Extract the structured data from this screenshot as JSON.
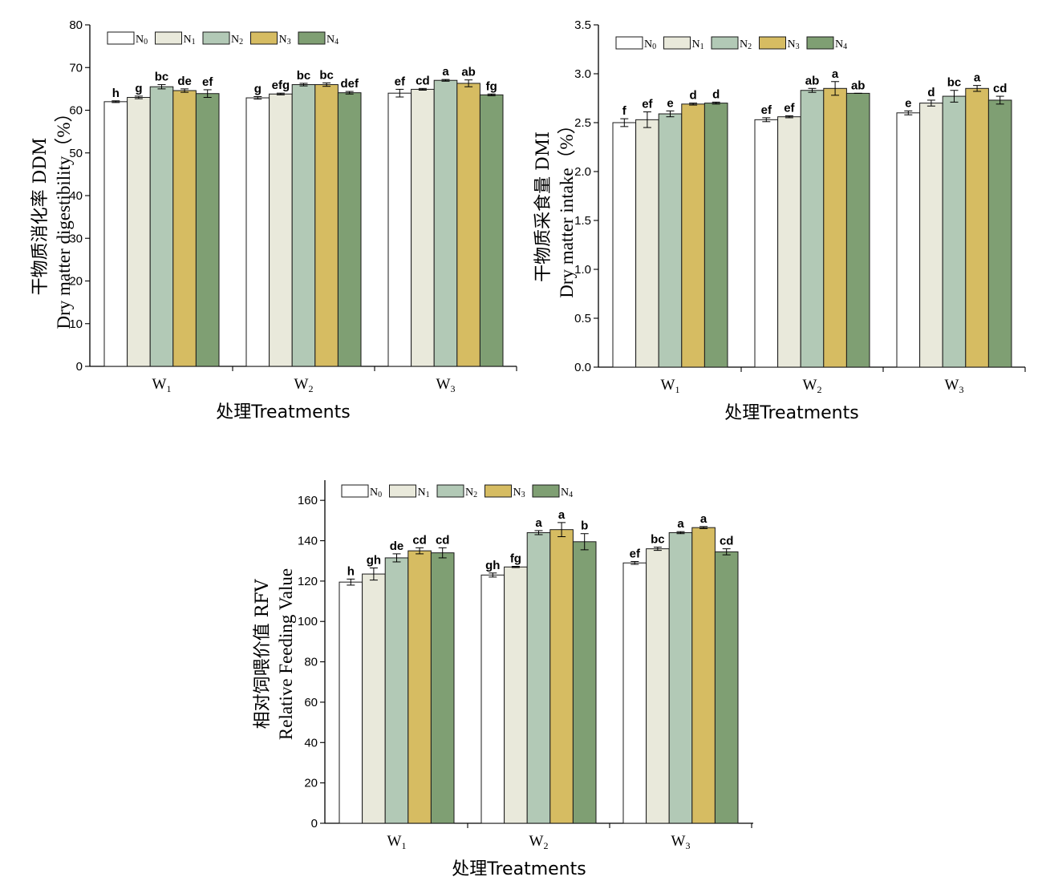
{
  "colors": {
    "N0": "#ffffff",
    "N1": "#e9e9db",
    "N2": "#b2c9b6",
    "N3": "#d6bc62",
    "N4": "#7f9f73"
  },
  "chart_data": [
    {
      "type": "bar",
      "categories": [
        "W1",
        "W2",
        "W3"
      ],
      "xlabel": "处理Treatments",
      "ylabel_cn": "干物质消化率 DDM",
      "ylabel_en": "Dry matter digestibility（%）",
      "ylim": [
        0,
        80
      ],
      "yticks": [
        0,
        10,
        20,
        30,
        40,
        50,
        60,
        70,
        80
      ],
      "legend": [
        "N0",
        "N1",
        "N2",
        "N3",
        "N4"
      ],
      "legend_position": "top-left",
      "series": [
        {
          "name": "N0",
          "values": [
            62.0,
            62.9,
            64.0
          ],
          "errors": [
            0.2,
            0.3,
            0.9
          ],
          "labels": [
            "h",
            "g",
            "ef"
          ]
        },
        {
          "name": "N1",
          "values": [
            63.0,
            63.8,
            64.9
          ],
          "errors": [
            0.3,
            0.2,
            0.2
          ],
          "labels": [
            "g",
            "efg",
            "cd"
          ]
        },
        {
          "name": "N2",
          "values": [
            65.5,
            66.0,
            67.0
          ],
          "errors": [
            0.5,
            0.3,
            0.2
          ],
          "labels": [
            "bc",
            "bc",
            "a"
          ]
        },
        {
          "name": "N3",
          "values": [
            64.6,
            66.0,
            66.3
          ],
          "errors": [
            0.4,
            0.4,
            0.8
          ],
          "labels": [
            "de",
            "bc",
            "ab"
          ]
        },
        {
          "name": "N4",
          "values": [
            63.9,
            64.1,
            63.6
          ],
          "errors": [
            0.9,
            0.3,
            0.2
          ],
          "labels": [
            "ef",
            "def",
            "fg"
          ]
        }
      ]
    },
    {
      "type": "bar",
      "categories": [
        "W1",
        "W2",
        "W3"
      ],
      "xlabel": "处理Treatments",
      "ylabel_cn": "干物质采食量 DMI",
      "ylabel_en": "Dry matter intake（%）",
      "ylim": [
        0,
        3.5
      ],
      "yticks": [
        0.0,
        0.5,
        1.0,
        1.5,
        2.0,
        2.5,
        3.0,
        3.5
      ],
      "legend": [
        "N0",
        "N1",
        "N2",
        "N3",
        "N4"
      ],
      "legend_position": "top-left",
      "series": [
        {
          "name": "N0",
          "values": [
            2.5,
            2.53,
            2.6
          ],
          "errors": [
            0.04,
            0.02,
            0.02
          ],
          "labels": [
            "f",
            "ef",
            "e"
          ]
        },
        {
          "name": "N1",
          "values": [
            2.53,
            2.56,
            2.7
          ],
          "errors": [
            0.08,
            0.01,
            0.03
          ],
          "labels": [
            "ef",
            "ef",
            "d"
          ]
        },
        {
          "name": "N2",
          "values": [
            2.59,
            2.83,
            2.77
          ],
          "errors": [
            0.03,
            0.02,
            0.06
          ],
          "labels": [
            "e",
            "ab",
            "bc"
          ]
        },
        {
          "name": "N3",
          "values": [
            2.69,
            2.85,
            2.85
          ],
          "errors": [
            0.01,
            0.07,
            0.03
          ],
          "labels": [
            "d",
            "a",
            "a"
          ]
        },
        {
          "name": "N4",
          "values": [
            2.7,
            2.8,
            2.73
          ],
          "errors": [
            0.01,
            0.0,
            0.04
          ],
          "labels": [
            "d",
            "ab",
            "cd"
          ]
        }
      ]
    },
    {
      "type": "bar",
      "categories": [
        "W1",
        "W2",
        "W3"
      ],
      "xlabel": "处理Treatments",
      "ylabel_cn": "相对饲喂价值 RFV",
      "ylabel_en": "Relative Feeding Value",
      "ylim": [
        0,
        170
      ],
      "yticks": [
        0,
        20,
        40,
        60,
        80,
        100,
        120,
        140,
        160
      ],
      "legend": [
        "N0",
        "N1",
        "N2",
        "N3",
        "N4"
      ],
      "legend_position": "top-left",
      "series": [
        {
          "name": "N0",
          "values": [
            119.5,
            123.0,
            129.0
          ],
          "errors": [
            1.5,
            1.0,
            0.7
          ],
          "labels": [
            "h",
            "gh",
            "ef"
          ]
        },
        {
          "name": "N1",
          "values": [
            123.5,
            127.0,
            136.0
          ],
          "errors": [
            3.0,
            0.3,
            0.8
          ],
          "labels": [
            "gh",
            "fg",
            "bc"
          ]
        },
        {
          "name": "N2",
          "values": [
            131.5,
            144.0,
            144.0
          ],
          "errors": [
            2.0,
            1.0,
            0.5
          ],
          "labels": [
            "de",
            "a",
            "a"
          ]
        },
        {
          "name": "N3",
          "values": [
            135.0,
            145.5,
            146.5
          ],
          "errors": [
            1.5,
            3.5,
            0.5
          ],
          "labels": [
            "cd",
            "a",
            "a"
          ]
        },
        {
          "name": "N4",
          "values": [
            134.0,
            139.5,
            134.5
          ],
          "errors": [
            2.5,
            4.0,
            1.5
          ],
          "labels": [
            "cd",
            "b",
            "cd"
          ]
        }
      ]
    }
  ]
}
